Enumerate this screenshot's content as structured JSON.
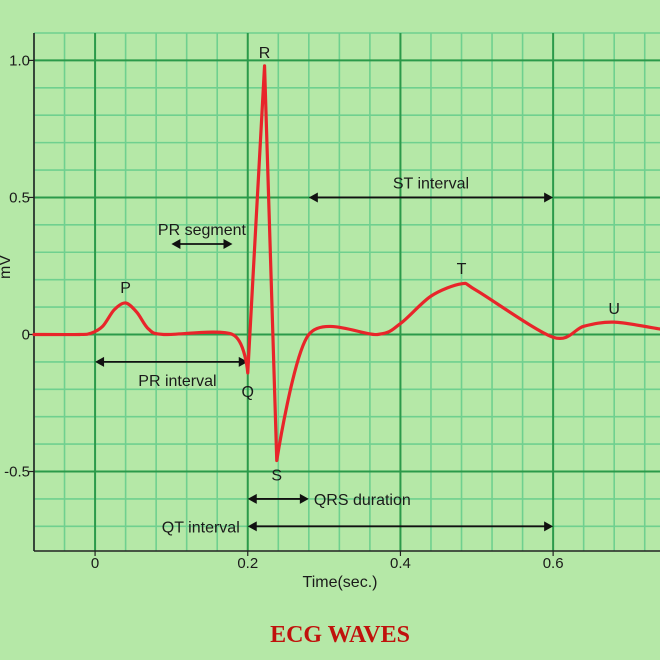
{
  "chart_data": {
    "type": "line",
    "title": "ECG WAVES",
    "xlabel": "Time(sec.)",
    "ylabel": "mV",
    "xlim": [
      -0.08,
      0.74
    ],
    "ylim": [
      -0.79,
      1.1
    ],
    "xticks": [
      0,
      0.2,
      0.4,
      0.6
    ],
    "xtick_labels": [
      "0",
      "0.2",
      "0.4",
      "0.6"
    ],
    "yticks": [
      1.0,
      0.5,
      0,
      -0.5
    ],
    "ytick_labels": [
      "1.0",
      "0.5",
      "0",
      "-0.5"
    ],
    "grid": true,
    "colors": {
      "background": "#b5e8a7",
      "minor_grid": "#6fd08f",
      "major_grid": "#2b9a4a",
      "trace": "#e8252a",
      "title": "#c0120c",
      "axis": "#222222"
    },
    "x": [
      -0.08,
      -0.02,
      -0.005,
      0.01,
      0.025,
      0.04,
      0.055,
      0.07,
      0.09,
      0.18,
      0.2,
      0.222,
      0.238,
      0.28,
      0.37,
      0.4,
      0.44,
      0.48,
      0.5,
      0.6,
      0.64,
      0.68,
      0.74
    ],
    "y": [
      0,
      0,
      0.005,
      0.03,
      0.09,
      0.115,
      0.08,
      0.02,
      0,
      0,
      -0.14,
      0.98,
      -0.46,
      0,
      0,
      0.04,
      0.14,
      0.185,
      0.16,
      -0.01,
      0.03,
      0.045,
      0.02
    ],
    "points": [
      {
        "label": "P",
        "x": 0.04,
        "y": 0.115
      },
      {
        "label": "Q",
        "x": 0.2,
        "y": -0.14
      },
      {
        "label": "R",
        "x": 0.222,
        "y": 0.98
      },
      {
        "label": "S",
        "x": 0.238,
        "y": -0.46
      },
      {
        "label": "T",
        "x": 0.48,
        "y": 0.185
      },
      {
        "label": "U",
        "x": 0.68,
        "y": 0.045
      }
    ],
    "intervals": [
      {
        "label": "ST interval",
        "x_start": 0.28,
        "x_end": 0.6,
        "y": 0.5,
        "label_pos": "above"
      },
      {
        "label": "PR segment",
        "x_start": 0.1,
        "x_end": 0.18,
        "y": 0.33,
        "label_pos": "above"
      },
      {
        "label": "PR interval",
        "x_start": 0.0,
        "x_end": 0.2,
        "y": -0.1,
        "label_pos": "below"
      },
      {
        "label": "QRS duration",
        "x_start": 0.2,
        "x_end": 0.28,
        "y": -0.6,
        "label_pos": "right"
      },
      {
        "label": "QT interval",
        "x_start": 0.2,
        "x_end": 0.6,
        "y": -0.7,
        "label_pos": "left"
      }
    ]
  }
}
